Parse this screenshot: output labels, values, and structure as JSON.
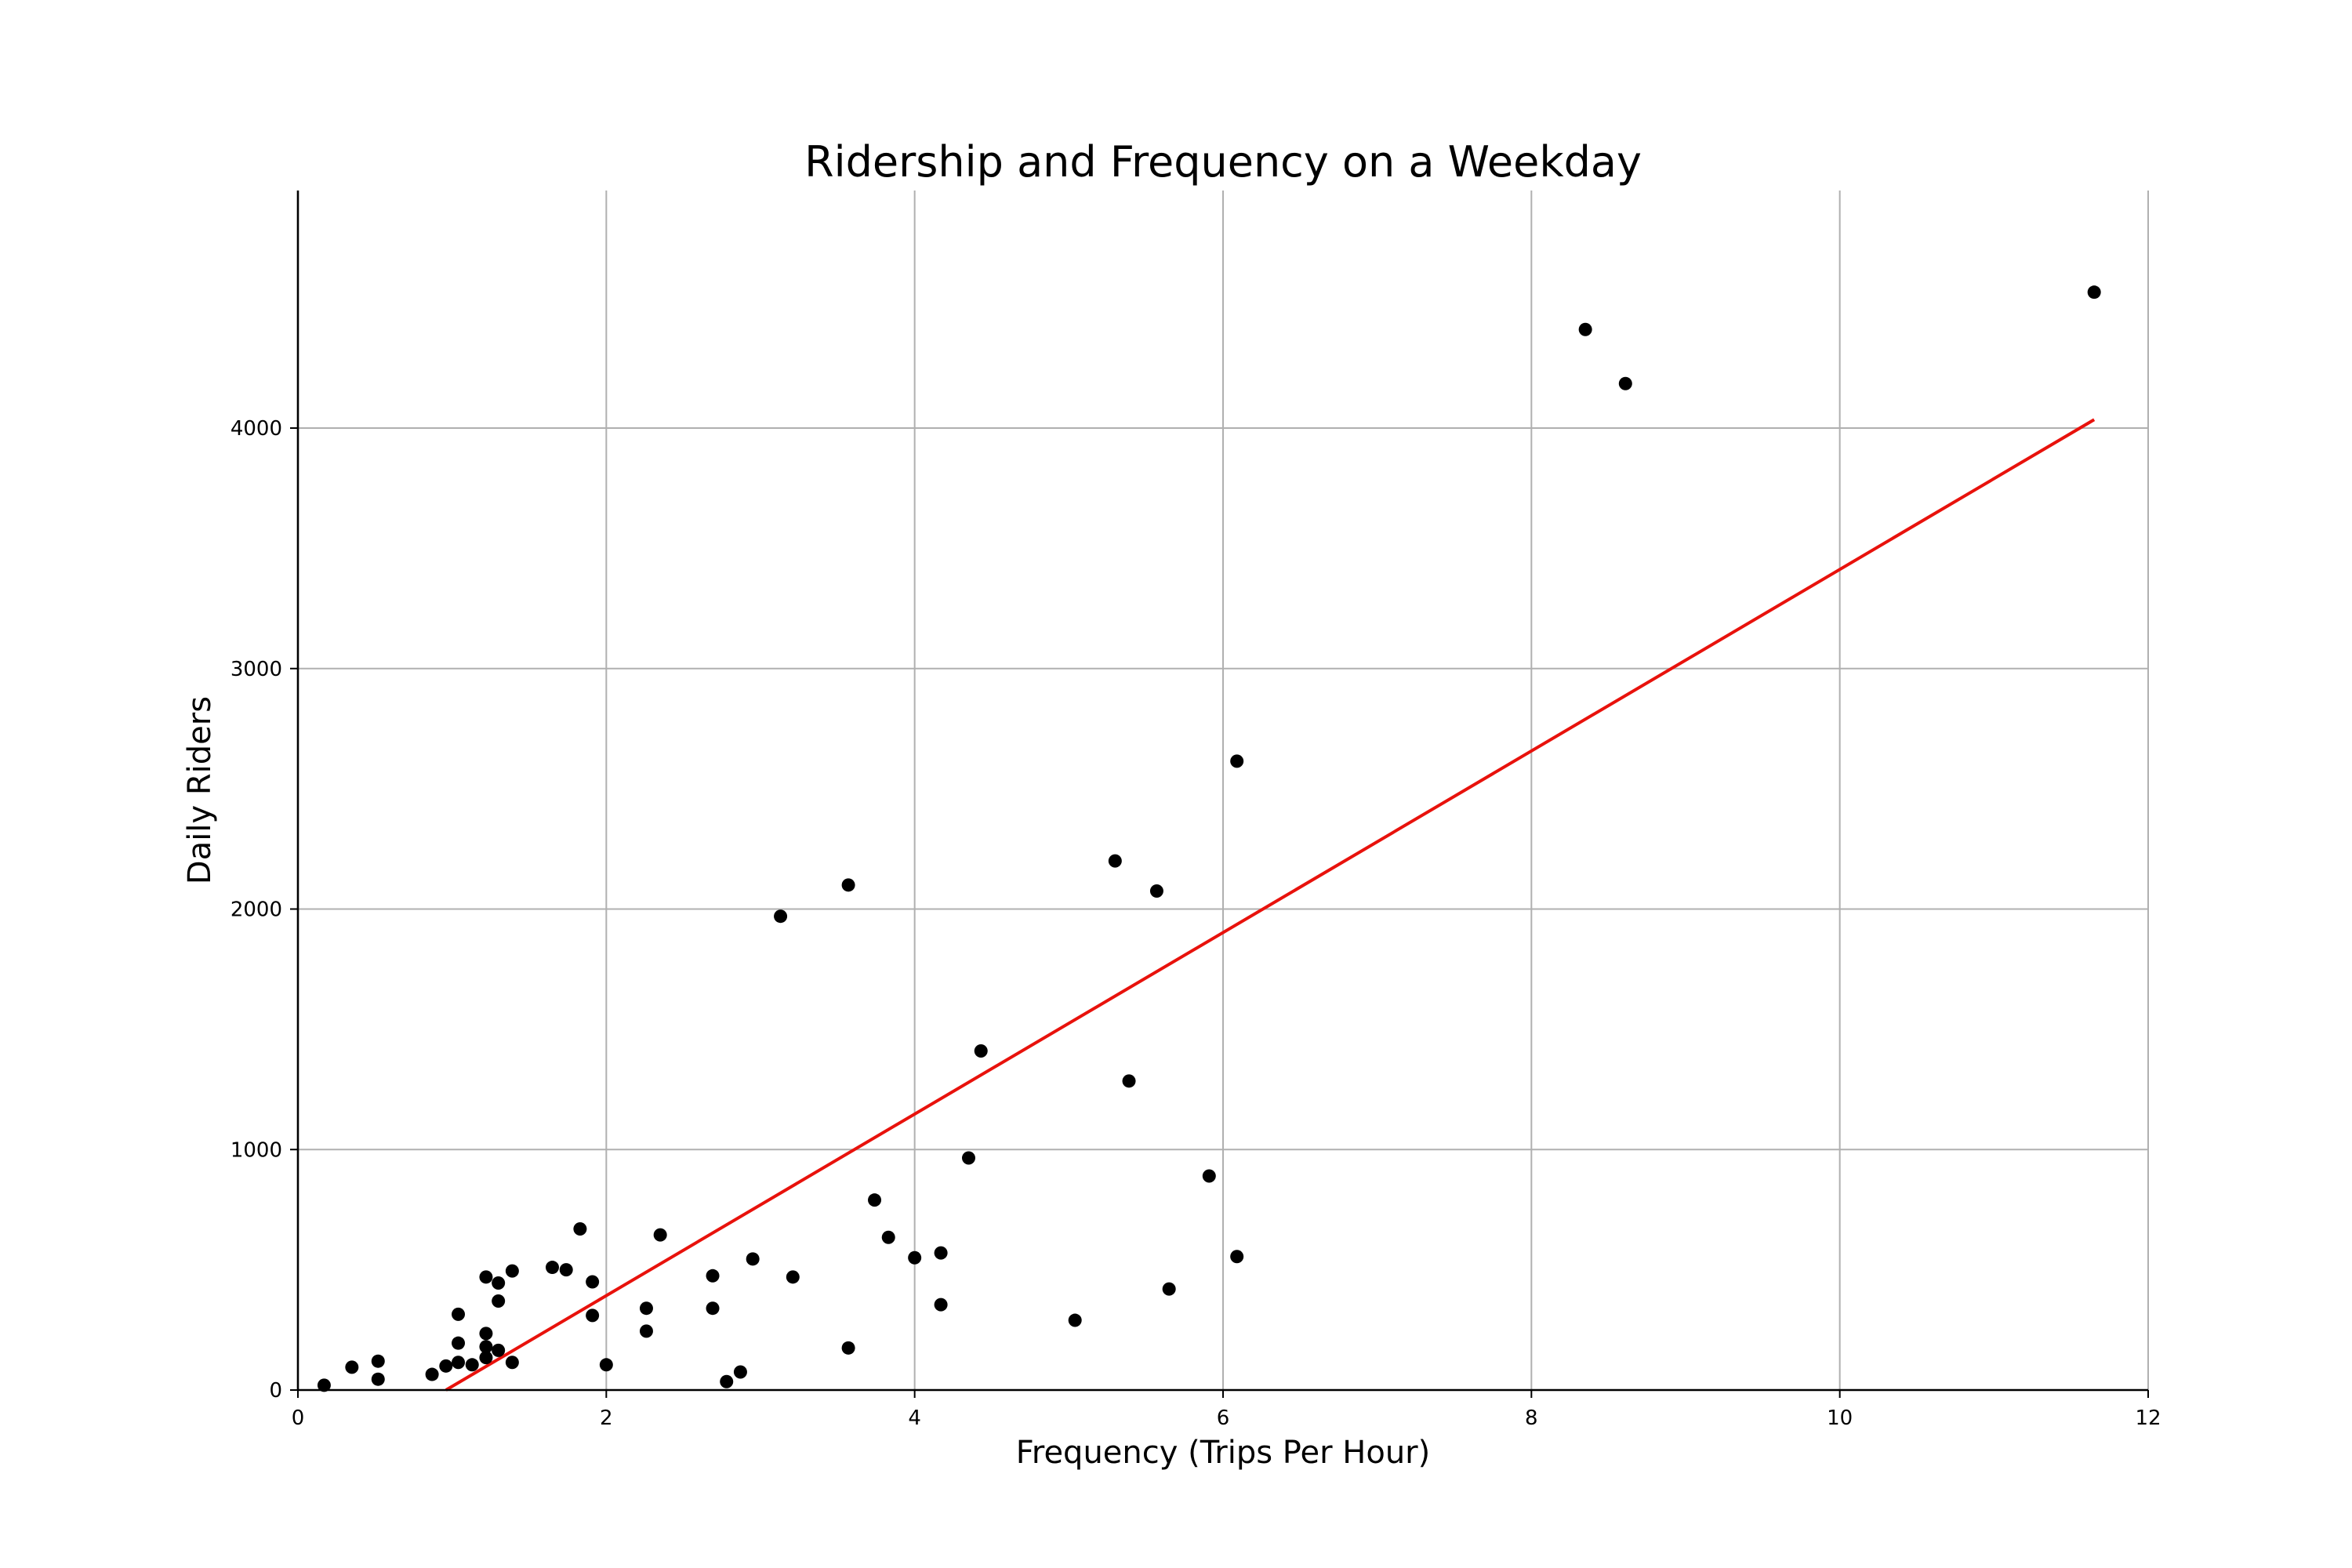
{
  "chart_data": {
    "type": "scatter",
    "title": "Ridership and Frequency on a Weekday",
    "xlabel": "Frequency (Trips Per Hour)",
    "ylabel": "Daily Riders",
    "xlim": [
      0,
      12
    ],
    "ylim": [
      0,
      5000
    ],
    "xticks": [
      0,
      2,
      4,
      6,
      8,
      10,
      12
    ],
    "yticks": [
      0,
      1000,
      2000,
      3000,
      4000
    ],
    "grid": true,
    "point_color": "#000000",
    "line_color": "#e8120c",
    "series": [
      {
        "type": "scatter",
        "x": [
          0.17,
          0.35,
          0.52,
          0.52,
          0.87,
          0.96,
          1.04,
          1.04,
          1.04,
          1.13,
          1.22,
          1.22,
          1.22,
          1.22,
          1.3,
          1.3,
          1.3,
          1.39,
          1.39,
          1.65,
          1.74,
          1.83,
          1.91,
          1.91,
          2.0,
          2.26,
          2.26,
          2.35,
          2.69,
          2.69,
          2.78,
          2.87,
          2.95,
          3.13,
          3.21,
          3.57,
          3.57,
          3.74,
          3.83,
          4.0,
          4.17,
          4.17,
          4.35,
          4.43,
          5.04,
          5.3,
          5.39,
          5.57,
          5.65,
          5.91,
          6.09,
          6.09,
          8.35,
          8.61,
          11.65
        ],
        "y": [
          20,
          95,
          45,
          120,
          65,
          100,
          115,
          195,
          315,
          105,
          135,
          180,
          235,
          470,
          165,
          370,
          445,
          115,
          495,
          510,
          500,
          670,
          450,
          310,
          105,
          340,
          245,
          645,
          475,
          340,
          35,
          75,
          545,
          1970,
          470,
          175,
          2100,
          790,
          635,
          550,
          570,
          355,
          965,
          1410,
          290,
          2200,
          1285,
          2075,
          420,
          890,
          555,
          2615,
          4410,
          4185,
          4565
        ]
      },
      {
        "type": "line",
        "x": [
          0.96,
          11.65
        ],
        "y": [
          0,
          4035
        ]
      }
    ]
  }
}
